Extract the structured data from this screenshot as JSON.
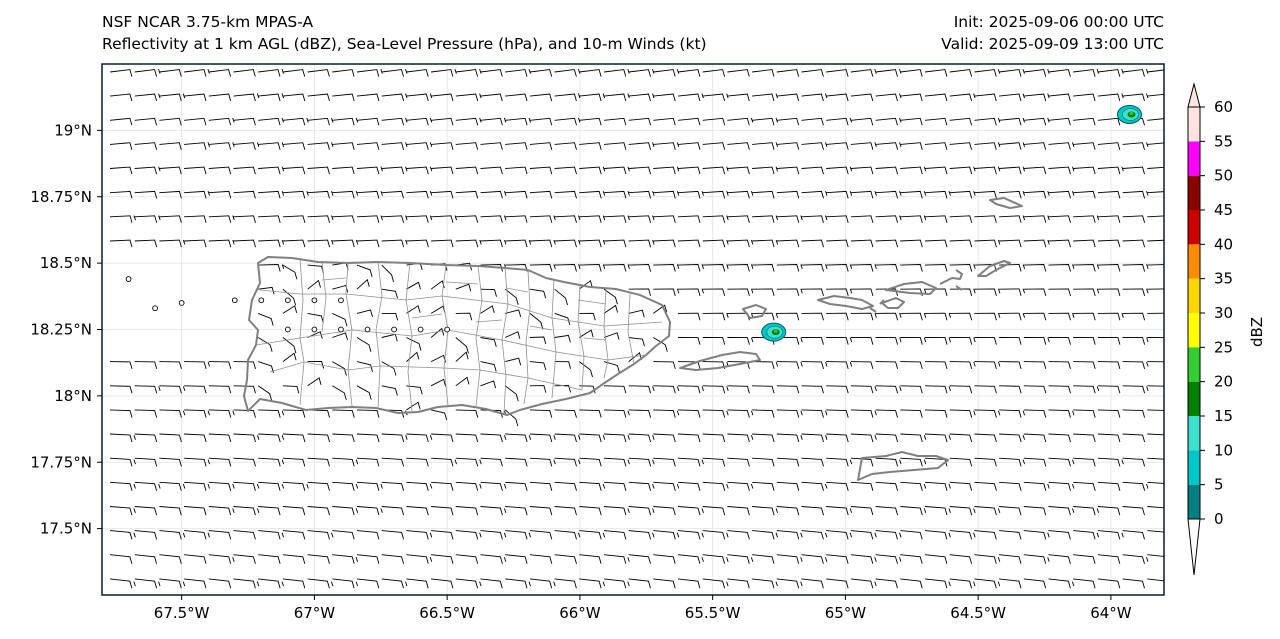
{
  "header": {
    "left_line1": "NSF NCAR 3.75-km MPAS-A",
    "left_line2": "Reflectivity at 1 km AGL (dBZ), Sea-Level Pressure (hPa), and 10-m Winds (kt)",
    "right_line1": "Init: 2025-09-06 00:00 UTC",
    "right_line2": "Valid: 2025-09-09 13:00 UTC"
  },
  "map": {
    "lon_range": [
      -67.8,
      -63.8
    ],
    "lat_range": [
      17.25,
      19.25
    ],
    "lon_ticks": [
      {
        "value": -67.5,
        "label": "67.5°W"
      },
      {
        "value": -67.0,
        "label": "67°W"
      },
      {
        "value": -66.5,
        "label": "66.5°W"
      },
      {
        "value": -66.0,
        "label": "66°W"
      },
      {
        "value": -65.5,
        "label": "65.5°W"
      },
      {
        "value": -65.0,
        "label": "65°W"
      },
      {
        "value": -64.5,
        "label": "64.5°W"
      },
      {
        "value": -64.0,
        "label": "64°W"
      }
    ],
    "lat_ticks": [
      {
        "value": 19.0,
        "label": "19°N"
      },
      {
        "value": 18.75,
        "label": "18.75°N"
      },
      {
        "value": 18.5,
        "label": "18.5°N"
      },
      {
        "value": 18.25,
        "label": "18.25°N"
      },
      {
        "value": 18.0,
        "label": "18°N"
      },
      {
        "value": 17.75,
        "label": "17.75°N"
      },
      {
        "value": 17.5,
        "label": "17.5°N"
      }
    ],
    "reflectivity_cells": [
      {
        "lon": -65.27,
        "lat": 18.24,
        "max_dbz": 20
      },
      {
        "lon": -63.93,
        "lat": 19.06,
        "max_dbz": 20
      }
    ],
    "calm_points": [
      {
        "lon": -67.7,
        "lat": 18.44
      },
      {
        "lon": -67.6,
        "lat": 18.33
      },
      {
        "lon": -67.5,
        "lat": 18.35
      },
      {
        "lon": -67.3,
        "lat": 18.36
      },
      {
        "lon": -67.2,
        "lat": 18.36
      },
      {
        "lon": -67.1,
        "lat": 18.36
      },
      {
        "lon": -67.0,
        "lat": 18.36
      },
      {
        "lon": -66.9,
        "lat": 18.36
      },
      {
        "lon": -67.1,
        "lat": 18.25
      },
      {
        "lon": -67.0,
        "lat": 18.25
      },
      {
        "lon": -66.9,
        "lat": 18.25
      },
      {
        "lon": -66.8,
        "lat": 18.25
      },
      {
        "lon": -66.7,
        "lat": 18.25
      },
      {
        "lon": -66.6,
        "lat": 18.25
      },
      {
        "lon": -66.5,
        "lat": 18.25
      }
    ]
  },
  "colorbar": {
    "label": "dBZ",
    "ticks": [
      "0",
      "5",
      "10",
      "15",
      "20",
      "25",
      "30",
      "35",
      "40",
      "45",
      "50",
      "55",
      "60"
    ],
    "colors": [
      "#008080",
      "#00c8c8",
      "#40e0d0",
      "#008000",
      "#32cd32",
      "#ffff00",
      "#ffd700",
      "#ff8c00",
      "#cc0000",
      "#8b0000",
      "#ff00ff",
      "#ffe4e1"
    ]
  },
  "colors": {
    "coast": "#808080",
    "municipal": "#909090",
    "barb": "#000000",
    "frame": "#0b1a33",
    "map_bg": "#ffffff"
  }
}
